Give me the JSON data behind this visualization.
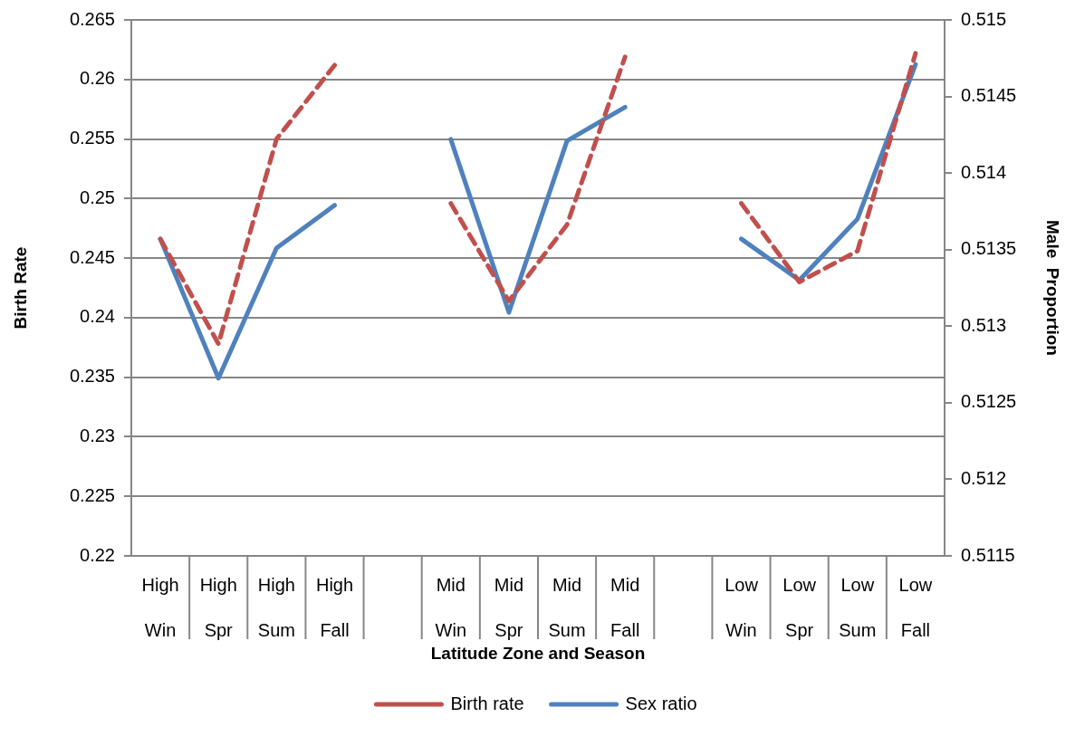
{
  "chart_data": {
    "type": "line",
    "xlabel": "Latitude Zone and Season",
    "ylabel": "Birth Rate",
    "y2label": "Male  Proportion",
    "categories": [
      "High\nWin",
      "High\nSpr",
      "High\nSum",
      "High\nFall",
      null,
      "Mid\nWin",
      "Mid\nSpr",
      "Mid\nSum",
      "Mid\nFall",
      null,
      "Low\nWin",
      "Low\nSpr",
      "Low\nSum",
      "Low\nFall"
    ],
    "series": [
      {
        "name": "Birth rate",
        "color": "#c0504d",
        "line_style": "dashed",
        "values": [
          0.2466,
          0.2378,
          0.255,
          0.2612,
          null,
          0.2496,
          0.2414,
          0.2478,
          0.2619,
          null,
          0.2496,
          0.243,
          0.2456,
          0.2622
        ]
      },
      {
        "name": "Sex ratio",
        "color": "#4f81bd",
        "line_style": "solid",
        "axis": "y2",
        "values": [
          0.51357,
          0.51266,
          0.51351,
          0.51379,
          null,
          0.51422,
          0.51309,
          0.51421,
          0.51443,
          null,
          0.51357,
          0.5133,
          0.5137,
          0.51471
        ]
      }
    ],
    "ylim": [
      0.22,
      0.265
    ],
    "yticks": [
      0.22,
      0.225,
      0.23,
      0.235,
      0.24,
      0.245,
      0.25,
      0.255,
      0.26,
      0.265
    ],
    "y2lim": [
      0.5115,
      0.515
    ],
    "y2ticks": [
      0.5115,
      0.512,
      0.5125,
      0.513,
      0.5135,
      0.514,
      0.5145,
      0.515
    ],
    "grid": "y",
    "legend": "bottom",
    "marker": "none"
  }
}
